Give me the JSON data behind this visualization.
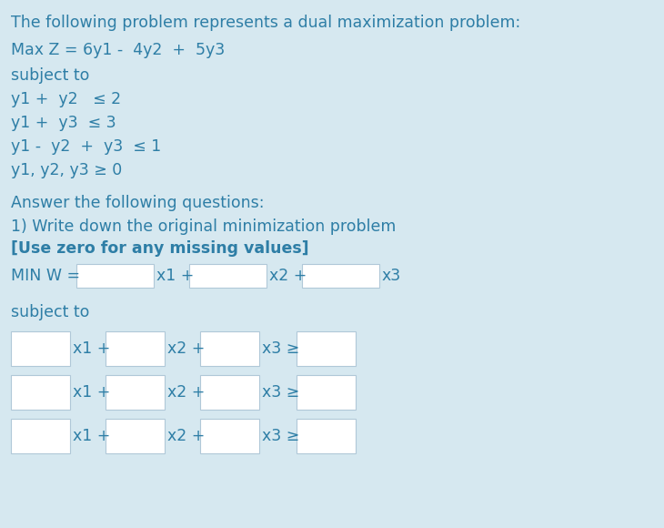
{
  "bg_color": "#d6e8f0",
  "text_color": "#2e7ea6",
  "box_edge_color": "#b0c8d8",
  "box_fill_color": "#ffffff",
  "title_line": "The following problem represents a dual maximization problem:",
  "max_line": "Max Z = 6y1 -  4y2  +  5y3",
  "subject_to_1": "subject to",
  "constraints_dual": [
    "y1 +  y2   ≤ 2",
    "y1 +  y3  ≤ 3",
    "y1 -  y2  +  y3  ≤ 1",
    "y1, y2, y3 ≥ 0"
  ],
  "answer_line": "Answer the following questions:",
  "question_line": "1) Write down the original minimization problem",
  "note_line": "[Use zero for any missing values]",
  "min_label": "MIN W =",
  "subject_to_2": "subject to",
  "num_constraint_rows": 3,
  "fig_width": 7.3,
  "fig_height": 5.8,
  "dpi": 100
}
